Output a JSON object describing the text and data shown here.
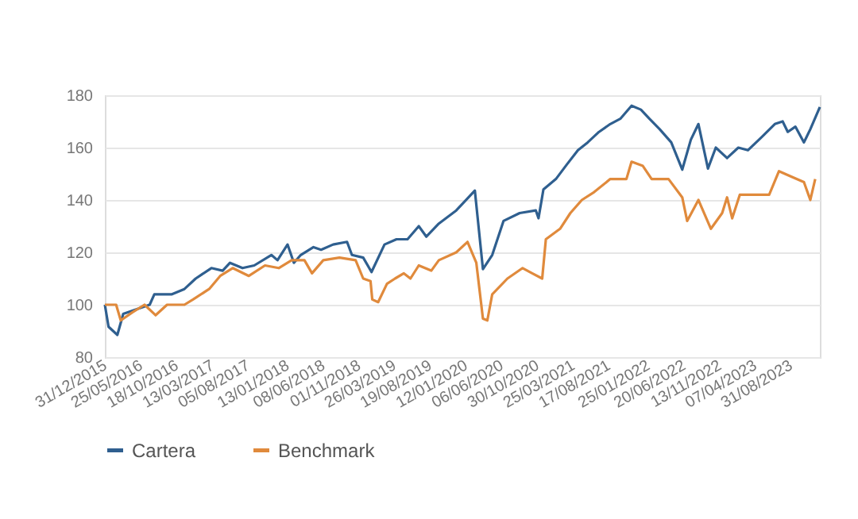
{
  "chart_data": {
    "type": "line",
    "xlim": [
      "2015-12-31",
      "2023-12-29"
    ],
    "xticks": [
      {
        "value": "2015-12-31",
        "label": "31/12/2015"
      },
      {
        "value": "2016-05-25",
        "label": "25/05/2016"
      },
      {
        "value": "2016-10-18",
        "label": "18/10/2016"
      },
      {
        "value": "2017-03-13",
        "label": "13/03/2017"
      },
      {
        "value": "2017-08-05",
        "label": "05/08/2017"
      },
      {
        "value": "2018-01-13",
        "label": "13/01/2018"
      },
      {
        "value": "2018-06-08",
        "label": "08/06/2018"
      },
      {
        "value": "2018-11-01",
        "label": "01/11/2018"
      },
      {
        "value": "2019-03-26",
        "label": "26/03/2019"
      },
      {
        "value": "2019-08-19",
        "label": "19/08/2019"
      },
      {
        "value": "2020-01-12",
        "label": "12/01/2020"
      },
      {
        "value": "2020-06-06",
        "label": "06/06/2020"
      },
      {
        "value": "2020-10-30",
        "label": "30/10/2020"
      },
      {
        "value": "2021-03-25",
        "label": "25/03/2021"
      },
      {
        "value": "2021-08-17",
        "label": "17/08/2021"
      },
      {
        "value": "2022-01-25",
        "label": "25/01/2022"
      },
      {
        "value": "2022-06-20",
        "label": "20/06/2022"
      },
      {
        "value": "2022-11-13",
        "label": "13/11/2022"
      },
      {
        "value": "2023-04-07",
        "label": "07/04/2023"
      },
      {
        "value": "2023-08-31",
        "label": "31/08/2023"
      }
    ],
    "ylim": [
      80,
      180
    ],
    "yticks": [
      80,
      100,
      120,
      140,
      160,
      180
    ],
    "grid": "y",
    "legend": "bottom",
    "line_style": "solid",
    "marker": "none",
    "series": [
      {
        "name": "Cartera",
        "color": "#2f5f8f",
        "x": [
          "2015-12-31",
          "2016-01-15",
          "2016-02-20",
          "2016-03-15",
          "2016-05-01",
          "2016-07-01",
          "2016-07-20",
          "2016-09-30",
          "2016-11-20",
          "2017-01-05",
          "2017-03-10",
          "2017-04-25",
          "2017-05-25",
          "2017-07-15",
          "2017-09-01",
          "2017-11-10",
          "2017-12-05",
          "2018-01-15",
          "2018-02-10",
          "2018-03-10",
          "2018-05-01",
          "2018-06-01",
          "2018-07-20",
          "2018-09-15",
          "2018-10-05",
          "2018-11-20",
          "2018-12-24",
          "2019-02-15",
          "2019-04-05",
          "2019-05-20",
          "2019-07-05",
          "2019-08-05",
          "2019-09-25",
          "2019-12-05",
          "2020-02-19",
          "2020-03-23",
          "2020-04-30",
          "2020-06-15",
          "2020-08-20",
          "2020-10-25",
          "2020-11-05",
          "2020-11-25",
          "2021-01-15",
          "2021-03-01",
          "2021-04-15",
          "2021-05-25",
          "2021-07-10",
          "2021-08-25",
          "2021-10-05",
          "2021-11-20",
          "2021-12-28",
          "2022-02-01",
          "2022-03-15",
          "2022-05-01",
          "2022-06-15",
          "2022-07-20",
          "2022-08-20",
          "2022-09-28",
          "2022-10-30",
          "2022-12-15",
          "2023-01-30",
          "2023-03-10",
          "2023-05-05",
          "2023-06-28",
          "2023-07-30",
          "2023-08-20",
          "2023-09-20",
          "2023-10-25",
          "2023-11-20",
          "2023-12-29"
        ],
        "values": [
          100,
          91.6,
          88.5,
          96.5,
          98,
          100,
          104,
          104,
          106,
          110,
          114,
          113,
          116,
          114,
          115,
          119,
          117,
          123,
          116,
          119,
          122,
          121,
          123,
          124,
          119,
          118,
          112.5,
          123,
          125,
          125,
          130,
          126,
          131,
          136,
          143.6,
          113.6,
          119,
          132,
          135,
          136,
          133,
          144,
          148,
          153.6,
          159,
          162,
          166,
          169,
          171,
          176,
          174.5,
          171,
          167,
          162,
          151.6,
          163,
          169,
          152,
          160,
          156,
          160,
          159,
          164,
          169,
          170,
          166,
          168,
          162,
          167,
          175.5
        ]
      },
      {
        "name": "Benchmark",
        "color": "#e08a3c",
        "x": [
          "2015-12-31",
          "2016-02-15",
          "2016-03-05",
          "2016-04-20",
          "2016-06-10",
          "2016-07-25",
          "2016-09-10",
          "2016-11-20",
          "2016-12-25",
          "2017-03-01",
          "2017-04-15",
          "2017-06-05",
          "2017-08-10",
          "2017-10-15",
          "2017-12-10",
          "2018-02-01",
          "2018-03-25",
          "2018-04-25",
          "2018-06-10",
          "2018-08-15",
          "2018-10-20",
          "2018-11-20",
          "2018-12-20",
          "2018-12-27",
          "2019-01-20",
          "2019-02-25",
          "2019-03-30",
          "2019-05-05",
          "2019-06-01",
          "2019-07-05",
          "2019-08-25",
          "2019-09-25",
          "2019-12-05",
          "2020-01-20",
          "2020-02-25",
          "2020-03-23",
          "2020-04-10",
          "2020-04-30",
          "2020-07-01",
          "2020-09-01",
          "2020-10-10",
          "2020-11-20",
          "2020-12-05",
          "2021-02-01",
          "2021-03-15",
          "2021-05-01",
          "2021-06-20",
          "2021-08-25",
          "2021-10-30",
          "2021-11-20",
          "2022-01-05",
          "2022-02-10",
          "2022-04-20",
          "2022-06-15",
          "2022-07-05",
          "2022-08-20",
          "2022-10-10",
          "2022-11-25",
          "2022-12-15",
          "2023-01-05",
          "2023-02-05",
          "2023-06-05",
          "2023-07-15",
          "2023-09-01",
          "2023-10-25",
          "2023-11-20",
          "2023-12-10"
        ],
        "values": [
          100,
          100,
          94,
          97,
          100,
          96,
          100,
          100,
          102,
          106,
          111,
          114,
          111,
          115,
          114,
          117,
          117,
          112,
          117,
          118,
          117,
          110,
          109,
          102,
          101,
          108,
          110,
          112,
          110,
          115,
          113,
          117,
          120,
          124,
          116,
          94.7,
          94,
          104,
          110,
          114,
          112,
          110,
          125,
          129,
          135,
          140,
          143,
          148,
          148,
          154.6,
          153,
          148,
          148,
          141,
          132,
          140,
          129,
          135,
          141,
          133,
          142,
          142,
          151,
          149,
          146.8,
          140,
          148
        ]
      }
    ]
  }
}
